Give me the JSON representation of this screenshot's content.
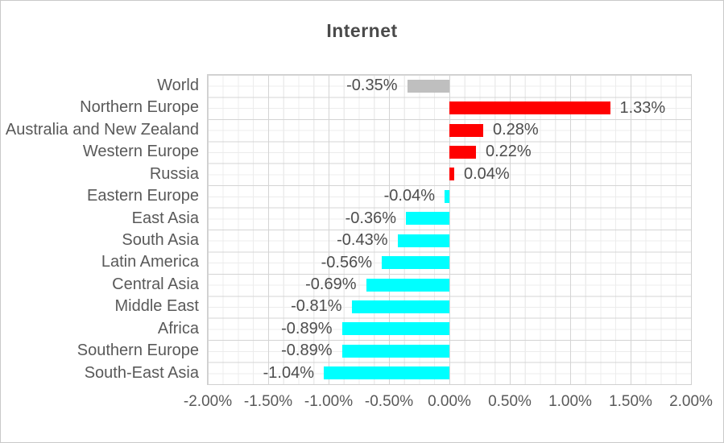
{
  "chart_data": {
    "type": "bar",
    "orientation": "horizontal",
    "title": "Internet",
    "categories": [
      "World",
      "Northern Europe",
      "Australia and New Zealand",
      "Western Europe",
      "Russia",
      "Eastern Europe",
      "East Asia",
      "South Asia",
      "Latin America",
      "Central Asia",
      "Middle East",
      "Africa",
      "Southern Europe",
      "South-East Asia"
    ],
    "values": [
      -0.35,
      1.33,
      0.28,
      0.22,
      0.04,
      -0.04,
      -0.36,
      -0.43,
      -0.56,
      -0.69,
      -0.81,
      -0.89,
      -0.89,
      -1.04
    ],
    "value_labels": [
      "-0.35%",
      "1.33%",
      "0.28%",
      "0.22%",
      "0.04%",
      "-0.04%",
      "-0.36%",
      "-0.43%",
      "-0.56%",
      "-0.69%",
      "-0.81%",
      "-0.89%",
      "-0.89%",
      "-1.04%"
    ],
    "bar_colors": [
      "#bfbfbf",
      "#ff0000",
      "#ff0000",
      "#ff0000",
      "#ff0000",
      "#00ffff",
      "#00ffff",
      "#00ffff",
      "#00ffff",
      "#00ffff",
      "#00ffff",
      "#00ffff",
      "#00ffff",
      "#00ffff"
    ],
    "x_axis": {
      "min": -2,
      "max": 2,
      "major_step": 0.5,
      "minor_step": 0.125,
      "tick_labels": [
        "-2.00%",
        "-1.50%",
        "-1.00%",
        "-0.50%",
        "0.00%",
        "0.50%",
        "1.00%",
        "1.50%",
        "2.00%"
      ]
    },
    "legend": "none",
    "grid": {
      "vertical_major": true,
      "vertical_minor": true,
      "horizontal_major": true,
      "horizontal_minor": true
    },
    "colors": {
      "positive_bar": "#ff0000",
      "negative_bar": "#00ffff",
      "world_bar": "#bfbfbf",
      "grid_major": "#d4d4d4",
      "grid_minor": "#ececec",
      "axis_text": "#595959",
      "value_text": "#4d4d4d",
      "title_text": "#4a4a4a",
      "plot_border": "#d0d0d0"
    }
  }
}
